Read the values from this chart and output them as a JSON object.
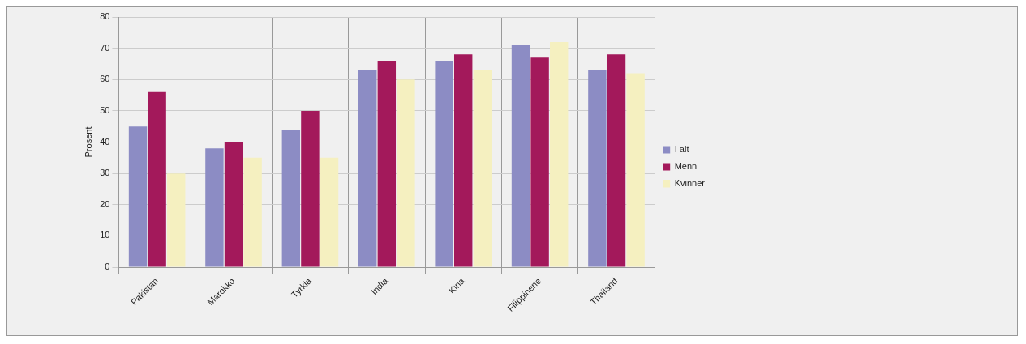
{
  "chart_data": {
    "type": "bar",
    "ylabel": "Prosent",
    "categories": [
      "Pakistan",
      "Marokko",
      "Tyrkia",
      "India",
      "Kina",
      "Filippinene",
      "Thailand"
    ],
    "series": [
      {
        "name": "I alt",
        "color": "#8c8cc4",
        "values": [
          45,
          38,
          44,
          63,
          66,
          71,
          63
        ]
      },
      {
        "name": "Menn",
        "color": "#a3195b",
        "values": [
          56,
          40,
          50,
          66,
          68,
          67,
          68
        ]
      },
      {
        "name": "Kvinner",
        "color": "#f5f0c0",
        "values": [
          30,
          35,
          35,
          60,
          63,
          72,
          62
        ]
      }
    ],
    "ylim": [
      0,
      80
    ],
    "yticks": [
      0,
      10,
      20,
      30,
      40,
      50,
      60,
      70,
      80
    ],
    "grid": true,
    "legend": "right"
  }
}
